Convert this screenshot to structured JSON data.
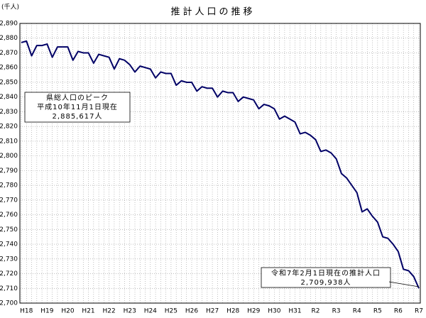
{
  "chart_data": {
    "type": "line",
    "title": "推計人口の推移",
    "y_label": "(千人)",
    "categories": [
      null,
      "H18",
      null,
      null,
      null,
      "H19",
      null,
      null,
      null,
      "H20",
      null,
      null,
      null,
      "H21",
      null,
      null,
      null,
      "H22",
      null,
      null,
      null,
      "H23",
      null,
      null,
      null,
      "H24",
      null,
      null,
      null,
      "H25",
      null,
      null,
      null,
      "H26",
      null,
      null,
      null,
      "H27",
      null,
      null,
      null,
      "H28",
      null,
      null,
      null,
      "H29",
      null,
      null,
      null,
      "H30",
      null,
      null,
      null,
      "H31",
      null,
      null,
      null,
      "R2",
      null,
      null,
      null,
      "R3",
      null,
      null,
      null,
      "R4",
      null,
      null,
      null,
      "R5",
      null,
      null,
      null,
      "R6",
      null,
      null,
      null,
      "R7"
    ],
    "values": [
      2877,
      2878,
      2868,
      2875,
      2875,
      2876,
      2867,
      2874,
      2874,
      2874,
      2865,
      2871,
      2870,
      2870,
      2863,
      2869,
      2868,
      2867,
      2859,
      2866,
      2865,
      2862,
      2857,
      2861,
      2860,
      2859,
      2853,
      2857,
      2856,
      2856,
      2848,
      2851,
      2850,
      2850,
      2844,
      2847,
      2846,
      2846,
      2840,
      2844,
      2843,
      2843,
      2837,
      2840,
      2839,
      2838,
      2832,
      2835,
      2834,
      2832,
      2825,
      2827,
      2825,
      2823,
      2815,
      2816,
      2814,
      2811,
      2803,
      2804,
      2802,
      2798,
      2788,
      2785,
      2780,
      2775,
      2762,
      2764,
      2759,
      2755,
      2745,
      2744,
      2740,
      2735,
      2723,
      2722,
      2718,
      2710
    ],
    "color": "#000066",
    "ylim": [
      2700,
      2890
    ],
    "yticks": [
      {
        "value": 2700,
        "label": "2,700"
      },
      {
        "value": 2710,
        "label": "2,710"
      },
      {
        "value": 2720,
        "label": "2,720"
      },
      {
        "value": 2730,
        "label": "2,730"
      },
      {
        "value": 2740,
        "label": "2,740"
      },
      {
        "value": 2750,
        "label": "2,750"
      },
      {
        "value": 2760,
        "label": "2,760"
      },
      {
        "value": 2770,
        "label": "2,770"
      },
      {
        "value": 2780,
        "label": "2,780"
      },
      {
        "value": 2790,
        "label": "2,790"
      },
      {
        "value": 2800,
        "label": "2,800"
      },
      {
        "value": 2810,
        "label": "2,810"
      },
      {
        "value": 2820,
        "label": "2,820"
      },
      {
        "value": 2830,
        "label": "2,830"
      },
      {
        "value": 2840,
        "label": "2,840"
      },
      {
        "value": 2850,
        "label": "2,850"
      },
      {
        "value": 2860,
        "label": "2,860"
      },
      {
        "value": 2870,
        "label": "2,870"
      },
      {
        "value": 2880,
        "label": "2,880"
      },
      {
        "value": 2890,
        "label": "2,890"
      }
    ],
    "grid": true,
    "annotations": [
      {
        "lines": [
          "県総人口のピーク",
          "平成10年11月1日現在",
          "2,885,617人"
        ]
      },
      {
        "lines": [
          "令和7年2月1日現在の推計人口",
          "2,709,938人"
        ]
      }
    ]
  }
}
